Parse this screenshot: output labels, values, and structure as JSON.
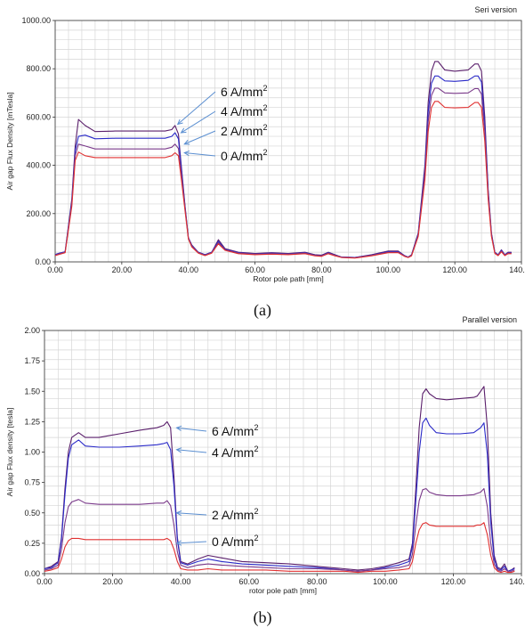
{
  "chart_data": [
    {
      "type": "line",
      "title": "Seri version",
      "xlabel": "Rotor pole path [mm]",
      "ylabel": "Air gap Flux Density [mTesla]",
      "xlim": [
        0,
        140
      ],
      "ylim": [
        0,
        1000
      ],
      "xticks": [
        "0.00",
        "20.00",
        "40.00",
        "60.00",
        "80.00",
        "100.00",
        "120.00",
        "140.00"
      ],
      "yticks": [
        "0.00",
        "200.00",
        "400.00",
        "600.00",
        "800.00",
        "1000.00"
      ],
      "grid": true,
      "caption": "(a)",
      "annotations": [
        {
          "text": "6 A/mm",
          "sup": "2",
          "target_x": 36,
          "target_y": 570
        },
        {
          "text": "4 A/mm",
          "sup": "2",
          "target_x": 37,
          "target_y": 535
        },
        {
          "text": "2 A/mm",
          "sup": "2",
          "target_x": 38,
          "target_y": 488
        },
        {
          "text": "0 A/mm",
          "sup": "2",
          "target_x": 38,
          "target_y": 452
        }
      ],
      "series": [
        {
          "label": "6 A/mm2",
          "color": "#5a1f6b",
          "x": [
            0,
            1,
            3,
            5,
            6,
            7,
            9,
            12,
            18,
            25,
            33,
            35,
            36,
            37,
            38,
            39,
            40,
            41,
            43,
            45,
            47,
            49,
            51,
            55,
            60,
            65,
            70,
            75,
            78,
            80,
            82,
            84,
            86,
            90,
            95,
            100,
            103,
            105,
            106,
            107,
            109,
            111,
            112,
            113,
            114,
            115,
            117,
            120,
            124,
            126,
            127,
            128,
            129,
            130,
            131,
            132,
            133,
            134,
            135,
            136,
            137
          ],
          "y": [
            30,
            35,
            42,
            260,
            480,
            590,
            565,
            540,
            542,
            542,
            542,
            548,
            565,
            530,
            380,
            230,
            100,
            70,
            40,
            30,
            40,
            92,
            55,
            40,
            35,
            38,
            35,
            40,
            30,
            28,
            40,
            30,
            20,
            18,
            30,
            45,
            45,
            25,
            20,
            30,
            120,
            400,
            660,
            790,
            830,
            830,
            795,
            790,
            795,
            820,
            820,
            790,
            600,
            300,
            120,
            40,
            30,
            50,
            30,
            40,
            40
          ]
        },
        {
          "label": "4 A/mm2",
          "color": "#2a2ac8",
          "x": [
            0,
            1,
            3,
            5,
            6,
            7,
            9,
            12,
            18,
            25,
            33,
            35,
            36,
            37,
            38,
            39,
            40,
            41,
            43,
            45,
            47,
            49,
            51,
            55,
            60,
            65,
            70,
            75,
            78,
            80,
            82,
            84,
            86,
            90,
            95,
            100,
            103,
            105,
            106,
            107,
            109,
            111,
            112,
            113,
            114,
            115,
            117,
            120,
            124,
            126,
            127,
            128,
            129,
            130,
            131,
            132,
            133,
            134,
            135,
            136,
            137
          ],
          "y": [
            30,
            35,
            42,
            250,
            460,
            520,
            525,
            510,
            512,
            512,
            512,
            520,
            535,
            510,
            370,
            225,
            100,
            68,
            40,
            30,
            40,
            85,
            52,
            38,
            33,
            36,
            33,
            38,
            28,
            26,
            38,
            28,
            20,
            18,
            28,
            42,
            42,
            25,
            20,
            28,
            115,
            380,
            620,
            740,
            770,
            770,
            750,
            748,
            752,
            770,
            770,
            745,
            570,
            290,
            115,
            40,
            30,
            48,
            30,
            38,
            38
          ]
        },
        {
          "label": "2 A/mm2",
          "color": "#7a3a8a",
          "x": [
            0,
            1,
            3,
            5,
            6,
            7,
            9,
            12,
            18,
            25,
            33,
            35,
            36,
            37,
            38,
            39,
            40,
            41,
            43,
            45,
            47,
            49,
            51,
            55,
            60,
            65,
            70,
            75,
            78,
            80,
            82,
            84,
            86,
            90,
            95,
            100,
            103,
            105,
            106,
            107,
            109,
            111,
            112,
            113,
            114,
            115,
            117,
            120,
            124,
            126,
            127,
            128,
            129,
            130,
            131,
            132,
            133,
            134,
            135,
            136,
            137
          ],
          "y": [
            28,
            33,
            40,
            240,
            440,
            488,
            480,
            468,
            468,
            468,
            468,
            475,
            488,
            470,
            350,
            218,
            98,
            65,
            38,
            28,
            38,
            80,
            50,
            36,
            32,
            34,
            32,
            36,
            27,
            25,
            36,
            27,
            19,
            17,
            27,
            40,
            40,
            24,
            19,
            27,
            110,
            360,
            580,
            690,
            720,
            720,
            700,
            698,
            700,
            718,
            718,
            695,
            540,
            280,
            110,
            38,
            28,
            45,
            28,
            36,
            36
          ]
        },
        {
          "label": "0 A/mm2",
          "color": "#e03030",
          "x": [
            0,
            1,
            3,
            5,
            6,
            7,
            9,
            12,
            18,
            25,
            33,
            35,
            36,
            37,
            38,
            39,
            40,
            41,
            43,
            45,
            47,
            49,
            51,
            55,
            60,
            65,
            70,
            75,
            78,
            80,
            82,
            84,
            86,
            90,
            95,
            100,
            103,
            105,
            106,
            107,
            109,
            111,
            112,
            113,
            114,
            115,
            117,
            120,
            124,
            126,
            127,
            128,
            129,
            130,
            131,
            132,
            133,
            134,
            135,
            136,
            137
          ],
          "y": [
            26,
            30,
            38,
            230,
            420,
            455,
            440,
            432,
            432,
            432,
            432,
            440,
            452,
            440,
            330,
            210,
            95,
            62,
            36,
            26,
            36,
            75,
            48,
            34,
            30,
            32,
            30,
            34,
            25,
            23,
            34,
            25,
            18,
            16,
            25,
            38,
            38,
            22,
            18,
            25,
            105,
            340,
            540,
            640,
            665,
            665,
            640,
            638,
            640,
            660,
            660,
            640,
            500,
            260,
            105,
            35,
            26,
            42,
            26,
            34,
            34
          ]
        }
      ]
    },
    {
      "type": "line",
      "title": "Parallel version",
      "xlabel": "rotor pole path [mm]",
      "ylabel": "Air gap Flux density [tesla]",
      "xlim": [
        0,
        140
      ],
      "ylim": [
        0,
        2.0
      ],
      "xticks": [
        "0.00",
        "20.00",
        "40.00",
        "60.00",
        "80.00",
        "100.00",
        "120.00",
        "140.00"
      ],
      "yticks": [
        "0.00",
        "0.25",
        "0.50",
        "0.75",
        "1.00",
        "1.25",
        "1.50",
        "1.75",
        "2.00"
      ],
      "grid": true,
      "caption": "(b)",
      "annotations": [
        {
          "text": "6 A/mm",
          "sup": "2",
          "target_x": 38,
          "target_y": 1.2
        },
        {
          "text": "4 A/mm",
          "sup": "2",
          "target_x": 38,
          "target_y": 1.02
        },
        {
          "text": "2 A/mm",
          "sup": "2",
          "target_x": 38,
          "target_y": 0.5
        },
        {
          "text": "0 A/mm",
          "sup": "2",
          "target_x": 38,
          "target_y": 0.25
        }
      ],
      "series": [
        {
          "label": "6 A/mm2",
          "color": "#5a1f6b",
          "x": [
            0,
            2,
            4,
            5,
            6,
            7,
            8,
            10,
            12,
            16,
            22,
            28,
            33,
            35,
            36,
            37,
            38,
            39,
            40,
            42,
            45,
            48,
            52,
            58,
            65,
            72,
            80,
            88,
            92,
            96,
            100,
            104,
            107,
            108,
            109,
            110,
            111,
            112,
            113,
            115,
            118,
            122,
            126,
            127,
            128,
            129,
            130,
            131,
            132,
            133,
            134,
            135,
            136,
            137,
            138
          ],
          "y": [
            0.04,
            0.06,
            0.1,
            0.3,
            0.7,
            1.0,
            1.12,
            1.16,
            1.12,
            1.12,
            1.15,
            1.18,
            1.2,
            1.22,
            1.25,
            1.2,
            0.8,
            0.3,
            0.1,
            0.08,
            0.12,
            0.15,
            0.13,
            0.1,
            0.09,
            0.08,
            0.06,
            0.04,
            0.03,
            0.04,
            0.06,
            0.09,
            0.12,
            0.25,
            0.7,
            1.2,
            1.48,
            1.52,
            1.48,
            1.44,
            1.43,
            1.44,
            1.45,
            1.46,
            1.5,
            1.54,
            1.2,
            0.5,
            0.15,
            0.05,
            0.04,
            0.08,
            0.02,
            0.03,
            0.05
          ]
        },
        {
          "label": "4 A/mm2",
          "color": "#2a2ac8",
          "x": [
            0,
            2,
            4,
            5,
            6,
            7,
            8,
            10,
            12,
            16,
            22,
            28,
            33,
            35,
            36,
            37,
            38,
            39,
            40,
            42,
            45,
            48,
            52,
            58,
            65,
            72,
            80,
            88,
            92,
            96,
            100,
            104,
            107,
            108,
            109,
            110,
            111,
            112,
            113,
            115,
            118,
            122,
            126,
            127,
            128,
            129,
            130,
            131,
            132,
            133,
            134,
            135,
            136,
            137,
            138
          ],
          "y": [
            0.04,
            0.05,
            0.09,
            0.28,
            0.65,
            0.95,
            1.06,
            1.1,
            1.05,
            1.04,
            1.04,
            1.05,
            1.06,
            1.07,
            1.08,
            1.02,
            0.72,
            0.28,
            0.09,
            0.07,
            0.1,
            0.12,
            0.1,
            0.08,
            0.07,
            0.06,
            0.05,
            0.03,
            0.02,
            0.03,
            0.05,
            0.07,
            0.1,
            0.22,
            0.6,
            1.0,
            1.24,
            1.28,
            1.22,
            1.16,
            1.15,
            1.15,
            1.16,
            1.18,
            1.2,
            1.24,
            0.98,
            0.42,
            0.12,
            0.04,
            0.03,
            0.06,
            0.02,
            0.03,
            0.04
          ]
        },
        {
          "label": "2 A/mm2",
          "color": "#7a3a8a",
          "x": [
            0,
            2,
            4,
            5,
            6,
            7,
            8,
            10,
            12,
            16,
            22,
            28,
            33,
            35,
            36,
            37,
            38,
            39,
            40,
            42,
            45,
            48,
            52,
            58,
            65,
            72,
            80,
            88,
            92,
            96,
            100,
            104,
            107,
            108,
            109,
            110,
            111,
            112,
            113,
            115,
            118,
            122,
            126,
            127,
            128,
            129,
            130,
            131,
            132,
            133,
            134,
            135,
            136,
            137,
            138
          ],
          "y": [
            0.03,
            0.04,
            0.07,
            0.2,
            0.42,
            0.55,
            0.59,
            0.61,
            0.58,
            0.57,
            0.57,
            0.57,
            0.58,
            0.58,
            0.6,
            0.56,
            0.4,
            0.18,
            0.07,
            0.05,
            0.07,
            0.08,
            0.07,
            0.06,
            0.05,
            0.04,
            0.04,
            0.03,
            0.02,
            0.03,
            0.04,
            0.05,
            0.07,
            0.16,
            0.4,
            0.6,
            0.69,
            0.7,
            0.67,
            0.65,
            0.64,
            0.64,
            0.65,
            0.66,
            0.67,
            0.7,
            0.55,
            0.25,
            0.08,
            0.03,
            0.02,
            0.04,
            0.02,
            0.02,
            0.03
          ]
        },
        {
          "label": "0 A/mm2",
          "color": "#e03030",
          "x": [
            0,
            2,
            4,
            5,
            6,
            7,
            8,
            10,
            12,
            16,
            22,
            28,
            33,
            35,
            36,
            37,
            38,
            39,
            40,
            42,
            45,
            48,
            52,
            58,
            65,
            72,
            80,
            88,
            92,
            96,
            100,
            104,
            107,
            108,
            109,
            110,
            111,
            112,
            113,
            115,
            118,
            122,
            126,
            127,
            128,
            129,
            130,
            131,
            132,
            133,
            134,
            135,
            136,
            137,
            138
          ],
          "y": [
            0.02,
            0.03,
            0.05,
            0.12,
            0.22,
            0.27,
            0.29,
            0.29,
            0.28,
            0.28,
            0.28,
            0.28,
            0.28,
            0.28,
            0.29,
            0.27,
            0.2,
            0.1,
            0.04,
            0.03,
            0.03,
            0.04,
            0.03,
            0.03,
            0.03,
            0.02,
            0.02,
            0.02,
            0.01,
            0.02,
            0.02,
            0.03,
            0.04,
            0.1,
            0.25,
            0.36,
            0.41,
            0.42,
            0.4,
            0.39,
            0.39,
            0.39,
            0.39,
            0.4,
            0.4,
            0.42,
            0.32,
            0.15,
            0.05,
            0.02,
            0.01,
            0.02,
            0.01,
            0.01,
            0.02
          ]
        }
      ]
    }
  ]
}
